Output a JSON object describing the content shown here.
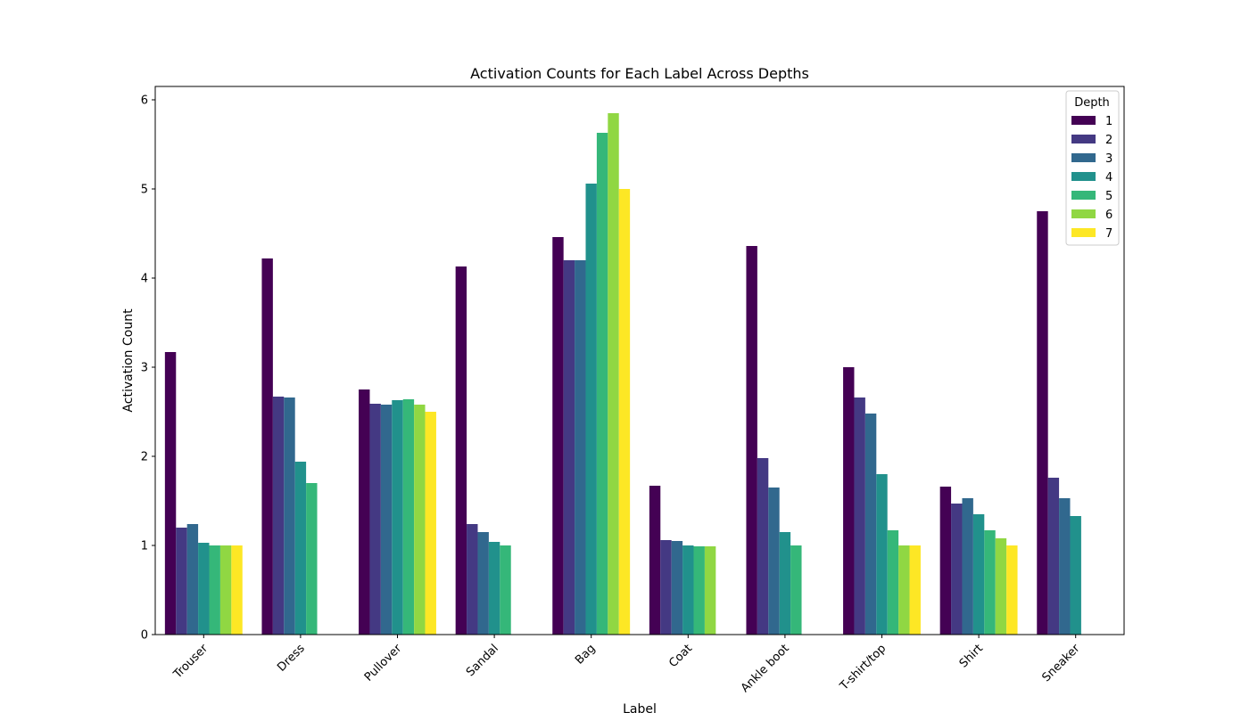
{
  "chart_data": {
    "type": "bar",
    "title": "Activation Counts for Each Label Across Depths",
    "xlabel": "Label",
    "ylabel": "Activation Count",
    "ylim": [
      0,
      6.15
    ],
    "yticks": [
      0,
      1,
      2,
      3,
      4,
      5,
      6
    ],
    "grid": false,
    "legend": {
      "title": "Depth",
      "placement": "top-right"
    },
    "categories": [
      "Trouser",
      "Dress",
      "Pullover",
      "Sandal",
      "Bag",
      "Coat",
      "Ankle boot",
      "T-shirt/top",
      "Shirt",
      "Sneaker"
    ],
    "series": [
      {
        "name": "1",
        "color": "#440154",
        "values": [
          3.17,
          4.22,
          2.75,
          4.13,
          4.46,
          1.67,
          4.36,
          3.0,
          1.66,
          4.75
        ]
      },
      {
        "name": "2",
        "color": "#443983",
        "values": [
          1.2,
          2.67,
          2.59,
          1.24,
          4.2,
          1.06,
          1.98,
          2.66,
          1.47,
          1.76
        ]
      },
      {
        "name": "3",
        "color": "#31688e",
        "values": [
          1.24,
          2.66,
          2.58,
          1.15,
          4.2,
          1.05,
          1.65,
          2.48,
          1.53,
          1.53
        ]
      },
      {
        "name": "4",
        "color": "#21918c",
        "values": [
          1.03,
          1.94,
          2.63,
          1.04,
          5.06,
          1.0,
          1.15,
          1.8,
          1.35,
          1.33
        ]
      },
      {
        "name": "5",
        "color": "#35b779",
        "values": [
          1.0,
          1.7,
          2.64,
          1.0,
          5.63,
          0.99,
          1.0,
          1.17,
          1.17,
          null
        ]
      },
      {
        "name": "6",
        "color": "#90d743",
        "values": [
          1.0,
          null,
          2.58,
          null,
          5.85,
          0.99,
          null,
          1.0,
          1.08,
          null
        ]
      },
      {
        "name": "7",
        "color": "#fde725",
        "values": [
          1.0,
          null,
          2.5,
          null,
          5.0,
          null,
          null,
          1.0,
          1.0,
          null
        ]
      }
    ]
  }
}
